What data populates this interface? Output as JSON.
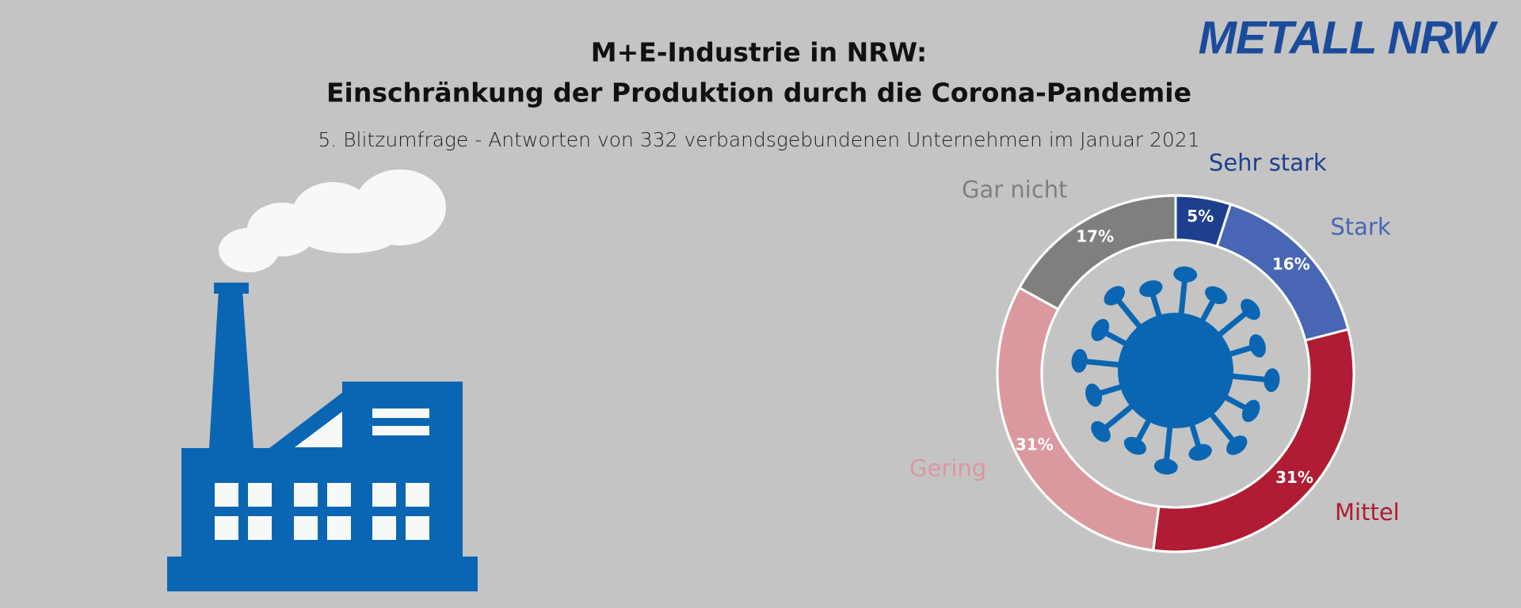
{
  "logo": "METALL NRW",
  "chart_data": {
    "type": "pie",
    "title": [
      "M+E-Industrie in NRW:",
      "Einschränkung der Produktion durch die Corona-Pandemie"
    ],
    "subtitle": "5. Blitzumfrage - Antworten von 332 verbandsgebundenen Unternehmen im Januar 2021",
    "categories": [
      "Sehr stark",
      "Stark",
      "Mittel",
      "Gering",
      "Gar nicht"
    ],
    "values": [
      5,
      16,
      31,
      31,
      17
    ],
    "value_labels": [
      "5%",
      "16%",
      "31%",
      "31%",
      "17%"
    ],
    "colors": [
      "#1e3f8e",
      "#4866b3",
      "#b01c34",
      "#d9999f",
      "#7f807e"
    ]
  }
}
